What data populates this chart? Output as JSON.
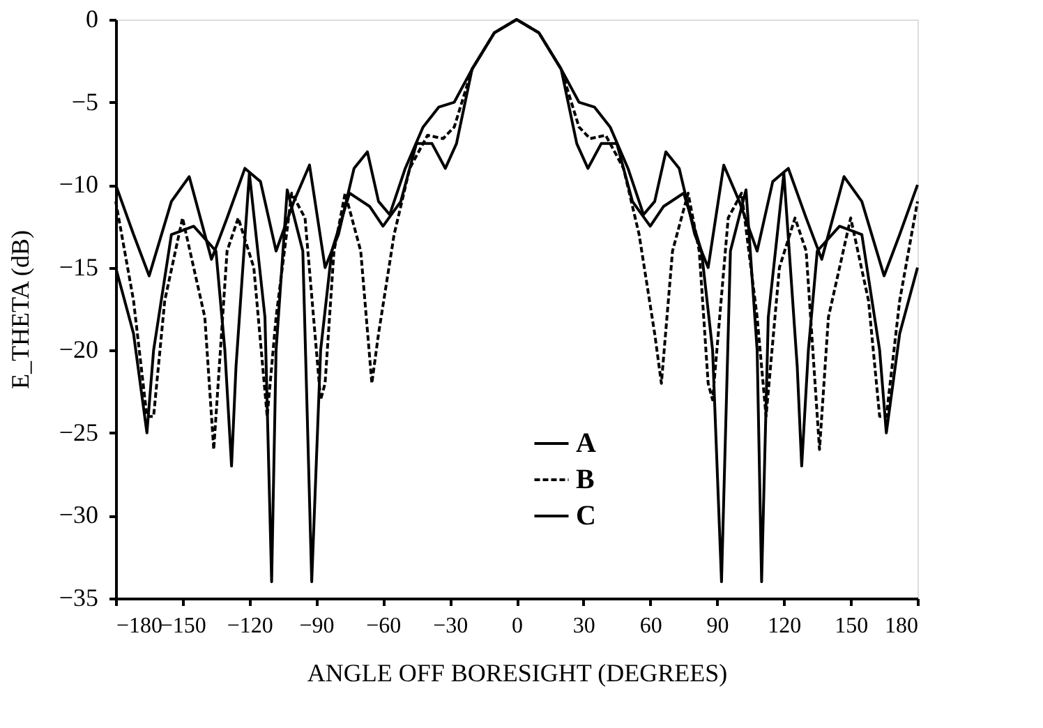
{
  "chart_data": {
    "type": "line",
    "xlabel": "ANGLE OFF BORESIGHT (DEGREES)",
    "ylabel": "E_THETA (dB)",
    "xlim": [
      -180,
      180
    ],
    "xticks": [
      -180,
      -150,
      -120,
      -90,
      -60,
      -30,
      0,
      30,
      60,
      90,
      120,
      150,
      180
    ],
    "ylim": [
      -35,
      0
    ],
    "yticks": [
      -35,
      -30,
      -25,
      -20,
      -15,
      -10,
      -5,
      0
    ],
    "grid": false,
    "legend": "bottom",
    "marker": "none",
    "series": [
      {
        "name": "A",
        "color": "#000000",
        "line_style": "solid",
        "x": [
          -180,
          -172,
          -165,
          -155,
          -147,
          -137,
          -130,
          -122,
          -115,
          -108,
          -100,
          -93,
          -86,
          -80,
          -73,
          -67,
          -62,
          -57,
          -50,
          -42,
          -35,
          -28,
          -20,
          -10,
          0,
          10,
          20,
          28,
          35,
          42,
          50,
          57,
          62,
          67,
          73,
          80,
          86,
          93,
          100,
          108,
          115,
          122,
          130,
          137,
          147,
          155,
          165,
          172,
          180
        ],
        "values": [
          -10,
          -13,
          -15.5,
          -11,
          -9.5,
          -14.5,
          -12,
          -9,
          -9.8,
          -14,
          -11,
          -8.8,
          -15,
          -13,
          -9,
          -8,
          -11,
          -11.8,
          -9,
          -6.5,
          -5.3,
          -5,
          -3,
          -0.8,
          0,
          -0.8,
          -3,
          -5,
          -5.3,
          -6.5,
          -9,
          -11.8,
          -11,
          -8,
          -9,
          -13,
          -15,
          -8.8,
          -11,
          -14,
          -9.8,
          -9,
          -12,
          -14.5,
          -9.5,
          -11,
          -15.5,
          -13,
          -10
        ]
      },
      {
        "name": "B",
        "color": "#000000",
        "line_style": "dashed",
        "x": [
          -180,
          -172,
          -166,
          -163,
          -158,
          -150,
          -140,
          -136,
          -130,
          -125,
          -118,
          -112,
          -108,
          -101,
          -95,
          -88,
          -86,
          -82,
          -77,
          -70,
          -65,
          -62,
          -55,
          -48,
          -40,
          -33,
          -28,
          -20,
          -10,
          0,
          10,
          20,
          28,
          33,
          40,
          48,
          55,
          62,
          65,
          70,
          77,
          82,
          86,
          88,
          95,
          101,
          108,
          112,
          118,
          125,
          130,
          136,
          140,
          150,
          158,
          163,
          166,
          172,
          180
        ],
        "values": [
          -11,
          -17,
          -24,
          -24,
          -17,
          -12,
          -18,
          -26,
          -14,
          -12,
          -15,
          -24,
          -18,
          -10.5,
          -12,
          -23,
          -22,
          -14,
          -10.5,
          -14,
          -22,
          -19,
          -13,
          -9,
          -7,
          -7.2,
          -6.5,
          -3,
          -0.8,
          0,
          -0.8,
          -3,
          -6.5,
          -7.2,
          -7,
          -9,
          -13,
          -19,
          -22,
          -14,
          -10.5,
          -14,
          -22,
          -23,
          -12,
          -10.5,
          -18,
          -24,
          -15,
          -12,
          -14,
          -26,
          -18,
          -12,
          -17,
          -24,
          -24,
          -17,
          -11
        ]
      },
      {
        "name": "C",
        "color": "#000000",
        "line_style": "solid",
        "x": [
          -180,
          -172,
          -166,
          -163,
          -155,
          -145,
          -135,
          -131,
          -128,
          -126,
          -120,
          -113,
          -110,
          -108,
          -103,
          -96,
          -92,
          -88,
          -83,
          -75,
          -66,
          -60,
          -52,
          -45,
          -38,
          -32,
          -27,
          -20,
          -10,
          0,
          10,
          20,
          27,
          32,
          38,
          45,
          52,
          60,
          66,
          75,
          83,
          88,
          92,
          96,
          103,
          108,
          110,
          113,
          120,
          126,
          128,
          131,
          135,
          145,
          155,
          163,
          166,
          172,
          180
        ],
        "values": [
          -15,
          -19,
          -25,
          -20,
          -13,
          -12.5,
          -14,
          -20,
          -27,
          -21,
          -9.3,
          -18,
          -34,
          -20,
          -10.3,
          -14,
          -34,
          -20,
          -14,
          -10.5,
          -11.3,
          -12.5,
          -11,
          -7.5,
          -7.5,
          -9,
          -7.5,
          -3,
          -0.8,
          0,
          -0.8,
          -3,
          -7.5,
          -9,
          -7.5,
          -7.5,
          -11,
          -12.5,
          -11.3,
          -10.5,
          -14,
          -20,
          -34,
          -14,
          -10.3,
          -20,
          -34,
          -18,
          -9.3,
          -21,
          -27,
          -20,
          -14,
          -12.5,
          -13,
          -20,
          -25,
          -19,
          -15
        ]
      }
    ]
  }
}
